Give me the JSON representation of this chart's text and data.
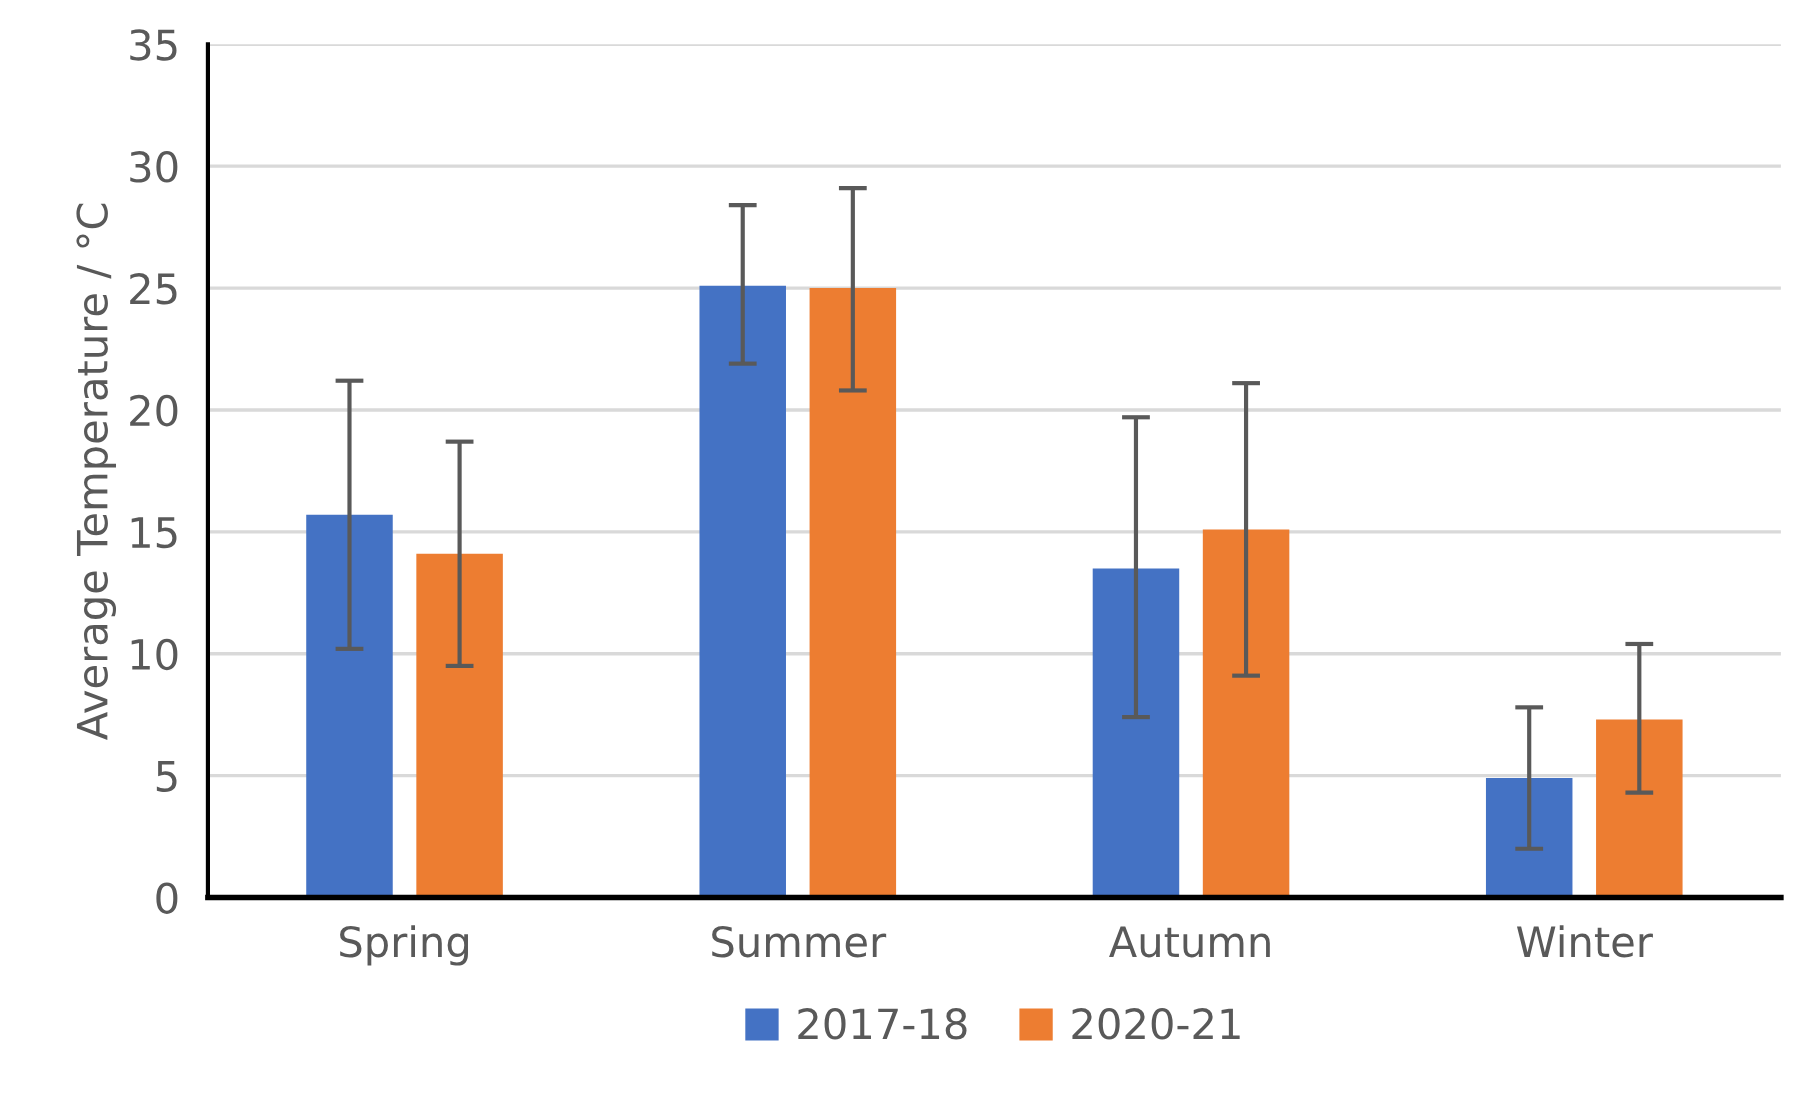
{
  "chart_data": {
    "type": "bar",
    "ylabel": "Average Temperature / °C",
    "categories": [
      "Spring",
      "Summer",
      "Autumn",
      "Winter"
    ],
    "series": [
      {
        "name": "2017-18",
        "color": "#4472c4",
        "values": [
          15.7,
          25.1,
          13.5,
          4.9
        ],
        "errors": [
          [
            10.2,
            21.2
          ],
          [
            21.9,
            28.4
          ],
          [
            7.4,
            19.7
          ],
          [
            2.0,
            7.8
          ]
        ]
      },
      {
        "name": "2020-21",
        "color": "#ed7d31",
        "values": [
          14.1,
          25.0,
          15.1,
          7.3
        ],
        "errors": [
          [
            9.5,
            18.7
          ],
          [
            20.8,
            29.1
          ],
          [
            9.1,
            21.1
          ],
          [
            4.3,
            10.4
          ]
        ]
      }
    ],
    "ylim": [
      0,
      35
    ],
    "yticks": [
      0,
      5,
      10,
      15,
      20,
      25,
      30,
      35
    ],
    "grid": "y",
    "legend": "bottom"
  }
}
